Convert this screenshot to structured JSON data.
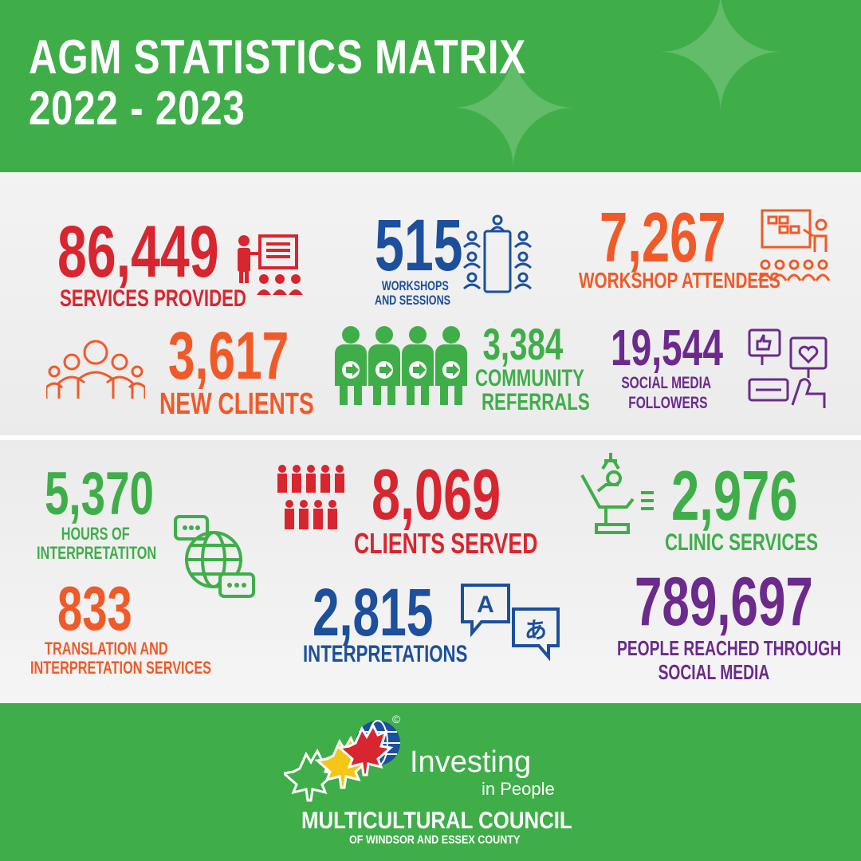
{
  "header": {
    "title_line1": "AGM STATISTICS MATRIX",
    "title_line2": "2022 - 2023"
  },
  "stats": {
    "services_provided": {
      "value": "86,449",
      "label": "SERVICES PROVIDED",
      "icon": "presentation-icon"
    },
    "workshops": {
      "value": "515",
      "label_line1": "WORKSHOPS",
      "label_line2": "AND SESSIONS",
      "icon": "meeting-table-icon"
    },
    "workshop_attendees": {
      "value": "7,267",
      "label": "WORKSHOP ATTENDEES",
      "icon": "audience-icon"
    },
    "new_clients": {
      "value": "3,617",
      "label": "NEW CLIENTS",
      "icon": "group-icon"
    },
    "community_referrals": {
      "value": "3,384",
      "label_line1": "COMMUNITY",
      "label_line2": "REFERRALS",
      "icon": "referral-people-icon"
    },
    "social_media_followers": {
      "value": "19,544",
      "label_line1": "SOCIAL MEDIA",
      "label_line2": "FOLLOWERS",
      "icon": "social-media-icon"
    },
    "hours_interpretation": {
      "value": "5,370",
      "label_line1": "HOURS OF",
      "label_line2": "INTERPRETATITON",
      "icon": "globe-chat-icon"
    },
    "clients_served": {
      "value": "8,069",
      "label": "CLIENTS SERVED",
      "icon": "crowd-icon"
    },
    "clinic_services": {
      "value": "2,976",
      "label": "CLINIC SERVICES",
      "icon": "dental-chair-icon"
    },
    "translation_services": {
      "value": "833",
      "label_line1": "TRANSLATION AND",
      "label_line2": "INTERPRETATION SERVICES"
    },
    "interpretations": {
      "value": "2,815",
      "label": "INTERPRETATIONS",
      "icon": "translate-icon"
    },
    "people_reached": {
      "value": "789,697",
      "label_line1": "PEOPLE REACHED THROUGH",
      "label_line2": "SOCIAL MEDIA"
    }
  },
  "footer": {
    "tagline_line1": "Investing",
    "tagline_line2": "in People",
    "org_name": "MULTICULTURAL COUNCIL",
    "org_sub": "OF WINDSOR AND ESSEX COUNTY",
    "copyright_mark": "©"
  },
  "colors": {
    "green": "#3fae49",
    "red": "#d7262f",
    "orange": "#f05a28",
    "blue": "#1c4f9c",
    "purple": "#6b2a8c"
  }
}
